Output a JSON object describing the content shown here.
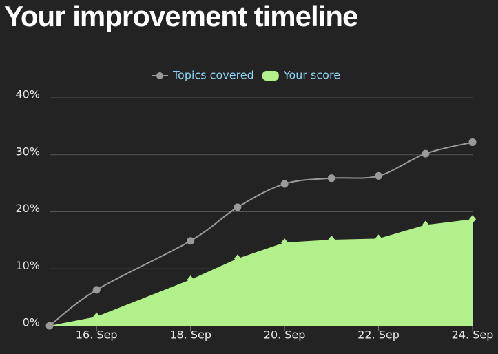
{
  "title": "Your improvement timeline",
  "chart_data": {
    "type": "line_area",
    "x": [
      15,
      16,
      18,
      19,
      20,
      21,
      22,
      23,
      24
    ],
    "xlim": [
      15,
      24
    ],
    "xticks": [
      {
        "value": 16,
        "label": "16. Sep"
      },
      {
        "value": 18,
        "label": "18. Sep"
      },
      {
        "value": 20,
        "label": "20. Sep"
      },
      {
        "value": 22,
        "label": "22. Sep"
      },
      {
        "value": 24,
        "label": "24. Sep"
      }
    ],
    "ylim": [
      0,
      40
    ],
    "yticks": [
      {
        "value": 0,
        "label": "0%"
      },
      {
        "value": 10,
        "label": "10%"
      },
      {
        "value": 20,
        "label": "20%"
      },
      {
        "value": 30,
        "label": "30%"
      },
      {
        "value": 40,
        "label": "40%"
      }
    ],
    "grid": true,
    "legend": "top",
    "series": [
      {
        "name": "Topics covered",
        "kind": "line",
        "color": "#9a9a9a",
        "values": [
          0,
          6.3,
          14.9,
          20.8,
          24.9,
          25.9,
          26.3,
          30.2,
          32.2
        ]
      },
      {
        "name": "Your score",
        "kind": "area",
        "color": "#b2f08c",
        "values": [
          0,
          1.6,
          8.1,
          11.8,
          14.6,
          15.1,
          15.3,
          17.7,
          18.7
        ]
      }
    ]
  }
}
